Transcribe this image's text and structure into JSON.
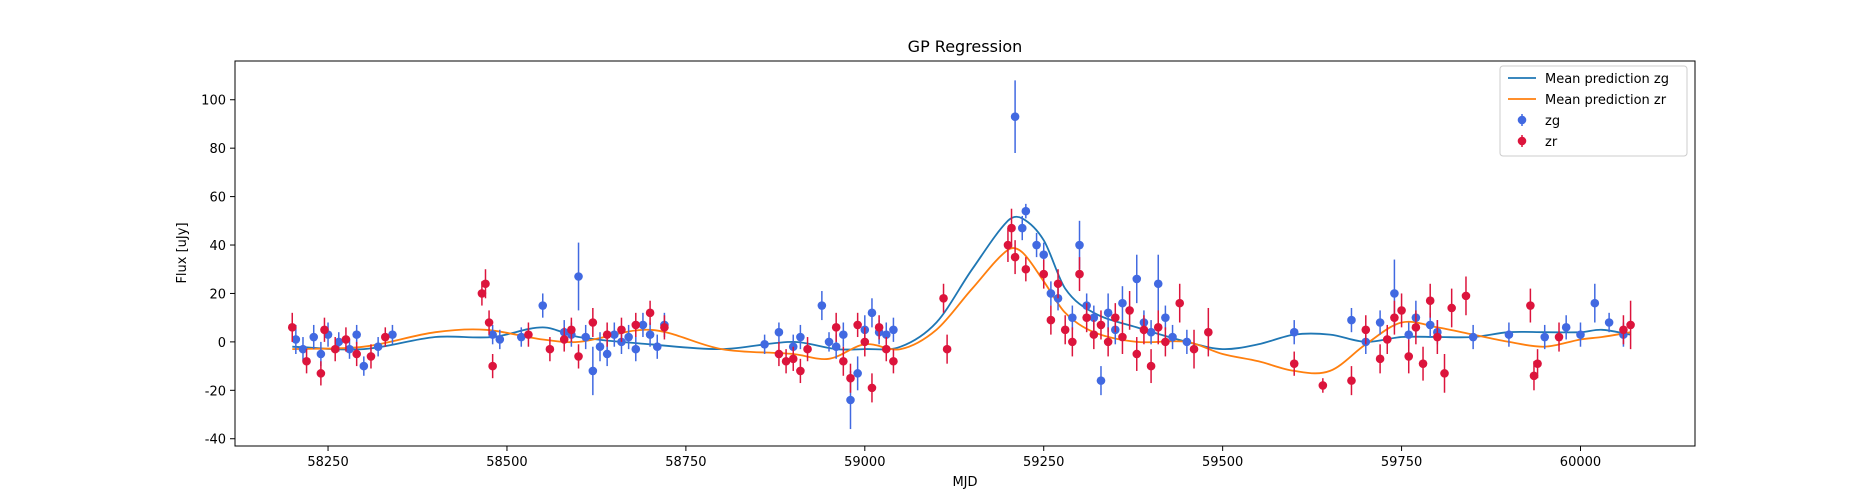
{
  "chart_data": {
    "type": "scatter",
    "title": "GP Regression",
    "xlabel": "MJD",
    "ylabel": "Flux [uJy]",
    "xlim": [
      58120,
      60160
    ],
    "ylim": [
      -43,
      116
    ],
    "xticks": [
      58250,
      58500,
      58750,
      59000,
      59250,
      59500,
      59750,
      60000
    ],
    "yticks": [
      -40,
      -20,
      0,
      20,
      40,
      60,
      80,
      100
    ],
    "grid": false,
    "legend_position": "top-right",
    "series": [
      {
        "name": "Mean prediction zg",
        "kind": "line",
        "color": "#1f77b4",
        "x": [
          58200,
          58300,
          58400,
          58480,
          58550,
          58600,
          58700,
          58800,
          58900,
          58960,
          59000,
          59050,
          59100,
          59150,
          59200,
          59220,
          59250,
          59280,
          59320,
          59380,
          59450,
          59500,
          59550,
          59600,
          59650,
          59700,
          59750,
          59800,
          59850,
          59900,
          59950,
          60000,
          60030,
          60070
        ],
        "y": [
          -2,
          -3,
          2,
          2,
          6,
          2,
          -1,
          -3,
          0,
          -3,
          -3,
          -2,
          8,
          30,
          50,
          51,
          42,
          22,
          12,
          6,
          0,
          -3,
          -1,
          3,
          3,
          0,
          2,
          2,
          2,
          4,
          4,
          4,
          5,
          3
        ]
      },
      {
        "name": "Mean prediction zr",
        "kind": "line",
        "color": "#ff7f0e",
        "x": [
          58200,
          58300,
          58400,
          58470,
          58550,
          58600,
          58700,
          58800,
          58900,
          58950,
          59000,
          59050,
          59100,
          59150,
          59200,
          59220,
          59250,
          59280,
          59320,
          59380,
          59450,
          59500,
          59550,
          59600,
          59650,
          59700,
          59750,
          59800,
          59850,
          59900,
          59950,
          60000,
          60030,
          60070
        ],
        "y": [
          -3,
          -2,
          4,
          5,
          1,
          0,
          5,
          -3,
          -5,
          -7,
          -1,
          -3,
          5,
          22,
          38,
          37,
          25,
          12,
          4,
          0,
          0,
          -5,
          -8,
          -12,
          -12,
          -1,
          8,
          6,
          3,
          0,
          -2,
          1,
          2,
          4
        ]
      },
      {
        "name": "zg",
        "kind": "errorbar",
        "color": "#4169e1",
        "x": [
          58205,
          58215,
          58230,
          58240,
          58250,
          58265,
          58280,
          58290,
          58300,
          58320,
          58340,
          58480,
          58490,
          58520,
          58550,
          58580,
          58590,
          58600,
          58610,
          58620,
          58630,
          58640,
          58650,
          58660,
          58670,
          58680,
          58690,
          58700,
          58710,
          58720,
          58860,
          58880,
          58900,
          58910,
          58940,
          58950,
          58960,
          58970,
          58980,
          58990,
          59000,
          59010,
          59020,
          59030,
          59040,
          59210,
          59220,
          59225,
          59240,
          59250,
          59260,
          59270,
          59290,
          59300,
          59310,
          59320,
          59330,
          59340,
          59350,
          59360,
          59380,
          59390,
          59400,
          59410,
          59420,
          59430,
          59450,
          59600,
          59680,
          59700,
          59720,
          59740,
          59760,
          59770,
          59790,
          59800,
          59850,
          59900,
          59950,
          59980,
          60000,
          60020,
          60040,
          60060
        ],
        "y": [
          1,
          -3,
          2,
          -5,
          3,
          0,
          -3,
          3,
          -10,
          -2,
          3,
          3,
          1,
          2,
          15,
          4,
          3,
          27,
          2,
          -12,
          -2,
          -5,
          3,
          0,
          2,
          -3,
          7,
          3,
          -2,
          7,
          -1,
          4,
          -2,
          2,
          15,
          0,
          -2,
          3,
          -24,
          -13,
          5,
          12,
          4,
          3,
          5,
          93,
          47,
          54,
          40,
          36,
          20,
          18,
          10,
          40,
          15,
          10,
          -16,
          12,
          5,
          16,
          26,
          8,
          4,
          24,
          10,
          2,
          0,
          4,
          9,
          0,
          8,
          20,
          3,
          10,
          7,
          4,
          2,
          3,
          2,
          6,
          3,
          16,
          8,
          3
        ],
        "yerr": [
          6,
          5,
          5,
          5,
          5,
          4,
          4,
          4,
          4,
          4,
          4,
          4,
          4,
          4,
          5,
          5,
          5,
          14,
          5,
          10,
          6,
          5,
          5,
          5,
          5,
          5,
          5,
          5,
          5,
          5,
          4,
          4,
          5,
          5,
          6,
          4,
          5,
          5,
          12,
          7,
          6,
          6,
          5,
          5,
          5,
          15,
          5,
          3,
          5,
          5,
          5,
          5,
          5,
          10,
          5,
          5,
          6,
          8,
          6,
          7,
          10,
          5,
          5,
          12,
          5,
          5,
          5,
          5,
          5,
          5,
          5,
          14,
          5,
          7,
          5,
          5,
          5,
          5,
          5,
          5,
          5,
          8,
          4,
          5
        ]
      },
      {
        "name": "zr",
        "kind": "errorbar",
        "color": "#dc143c",
        "x": [
          58200,
          58220,
          58240,
          58245,
          58260,
          58275,
          58290,
          58310,
          58330,
          58465,
          58470,
          58475,
          58480,
          58530,
          58560,
          58580,
          58590,
          58600,
          58620,
          58640,
          58660,
          58680,
          58700,
          58720,
          58880,
          58890,
          58900,
          58910,
          58920,
          58960,
          58970,
          58980,
          58990,
          59000,
          59010,
          59020,
          59030,
          59040,
          59110,
          59115,
          59200,
          59205,
          59210,
          59225,
          59250,
          59260,
          59270,
          59280,
          59290,
          59300,
          59310,
          59320,
          59330,
          59340,
          59350,
          59360,
          59370,
          59380,
          59390,
          59400,
          59410,
          59420,
          59440,
          59460,
          59480,
          59600,
          59640,
          59680,
          59700,
          59720,
          59730,
          59740,
          59750,
          59760,
          59770,
          59780,
          59790,
          59800,
          59810,
          59820,
          59840,
          59930,
          59935,
          59940,
          59970,
          60060,
          60070
        ],
        "y": [
          6,
          -8,
          -13,
          5,
          -3,
          1,
          -5,
          -6,
          2,
          20,
          24,
          8,
          -10,
          3,
          -3,
          1,
          5,
          -6,
          8,
          3,
          5,
          7,
          12,
          6,
          -5,
          -8,
          -7,
          -12,
          -3,
          6,
          -8,
          -15,
          7,
          0,
          -19,
          6,
          -3,
          -8,
          18,
          -3,
          40,
          47,
          35,
          30,
          28,
          9,
          24,
          5,
          0,
          28,
          10,
          3,
          7,
          0,
          10,
          2,
          13,
          -5,
          5,
          -10,
          6,
          0,
          16,
          -3,
          4,
          -9,
          -18,
          -16,
          5,
          -7,
          1,
          10,
          13,
          -6,
          6,
          -9,
          17,
          2,
          -13,
          14,
          19,
          15,
          -14,
          -9,
          2,
          5,
          7
        ],
        "yerr": [
          6,
          5,
          5,
          5,
          5,
          5,
          5,
          5,
          4,
          5,
          6,
          5,
          5,
          5,
          5,
          5,
          5,
          5,
          6,
          5,
          5,
          5,
          5,
          5,
          5,
          5,
          5,
          5,
          5,
          6,
          6,
          6,
          5,
          6,
          6,
          5,
          5,
          5,
          6,
          6,
          7,
          8,
          7,
          5,
          6,
          6,
          6,
          6,
          6,
          7,
          6,
          6,
          6,
          6,
          6,
          7,
          8,
          7,
          6,
          7,
          7,
          6,
          8,
          8,
          10,
          5,
          3,
          6,
          6,
          6,
          6,
          7,
          7,
          7,
          7,
          7,
          7,
          7,
          8,
          8,
          8,
          7,
          6,
          6,
          6,
          6,
          10
        ]
      }
    ]
  }
}
